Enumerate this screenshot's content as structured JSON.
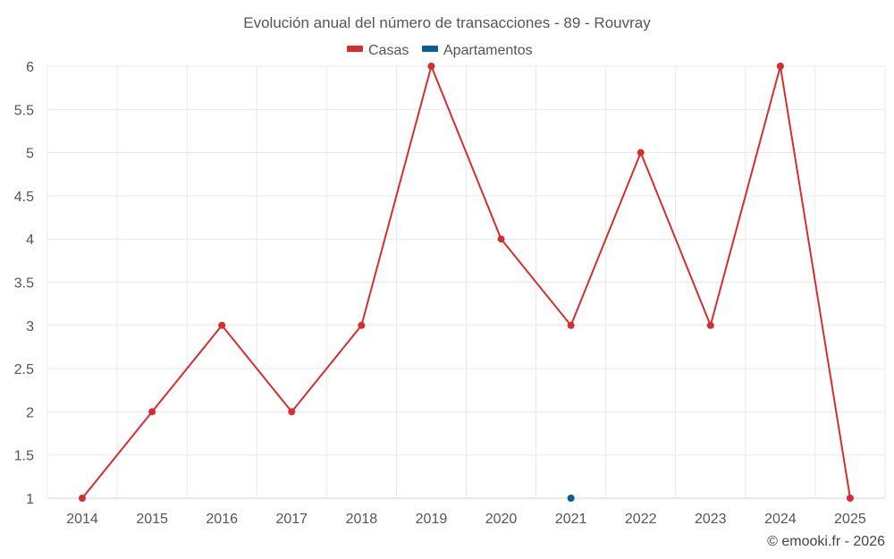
{
  "chart_data": {
    "type": "line",
    "title": "Evolución anual del número de transacciones - 89 - Rouvray",
    "xlabel": "",
    "ylabel": "",
    "x": [
      "2014",
      "2015",
      "2016",
      "2017",
      "2018",
      "2019",
      "2020",
      "2021",
      "2022",
      "2023",
      "2024",
      "2025"
    ],
    "ylim": [
      1,
      6
    ],
    "yticks": [
      "1",
      "1.5",
      "2",
      "2.5",
      "3",
      "3.5",
      "4",
      "4.5",
      "5",
      "5.5",
      "6"
    ],
    "grid": true,
    "legend_position": "top-center",
    "series": [
      {
        "name": "Casas",
        "color": "#d32f2f",
        "values": [
          1,
          2,
          3,
          2,
          3,
          6,
          4,
          3,
          5,
          3,
          6,
          1
        ]
      },
      {
        "name": "Apartamentos",
        "color": "#0b5e94",
        "values": [
          null,
          null,
          null,
          null,
          null,
          null,
          null,
          1,
          null,
          null,
          null,
          null
        ]
      }
    ]
  },
  "credit": "© emooki.fr - 2026"
}
